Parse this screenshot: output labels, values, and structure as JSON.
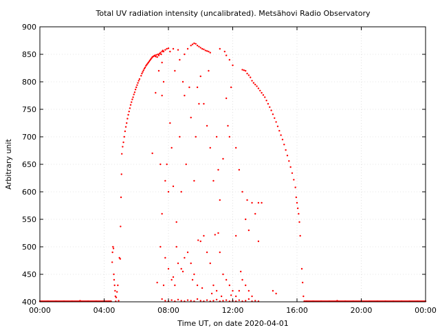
{
  "chart_data": {
    "type": "scatter",
    "title": "Total UV radiation intensity (uncalibrated). Metsähovi Radio Observatory",
    "xlabel": "Time UT, on date 2020-04-01",
    "ylabel": "Arbitrary unit",
    "xlim": [
      0,
      24
    ],
    "ylim": [
      400,
      900
    ],
    "x_ticks": [
      {
        "value": 0,
        "label": "00:00"
      },
      {
        "value": 4,
        "label": "04:00"
      },
      {
        "value": 8,
        "label": "08:00"
      },
      {
        "value": 12,
        "label": "12:00"
      },
      {
        "value": 16,
        "label": "16:00"
      },
      {
        "value": 20,
        "label": "20:00"
      },
      {
        "value": 24,
        "label": "00:00"
      }
    ],
    "y_ticks": [
      400,
      450,
      500,
      550,
      600,
      650,
      700,
      750,
      800,
      850,
      900
    ],
    "grid": true,
    "marker_color": "#ff0000",
    "series": [
      {
        "values_description_free": true,
        "points": [
          [
            0.0,
            401
          ],
          [
            0.5,
            401
          ],
          [
            1.0,
            401
          ],
          [
            1.5,
            401
          ],
          [
            2.0,
            401
          ],
          [
            2.5,
            402
          ],
          [
            3.0,
            401
          ],
          [
            3.5,
            401
          ],
          [
            4.0,
            401
          ],
          [
            4.3,
            401
          ],
          [
            4.4,
            401
          ],
          [
            4.5,
            472
          ],
          [
            4.52,
            490
          ],
          [
            4.55,
            500
          ],
          [
            4.58,
            497
          ],
          [
            4.6,
            450
          ],
          [
            4.62,
            440
          ],
          [
            4.65,
            430
          ],
          [
            4.68,
            420
          ],
          [
            4.7,
            410
          ],
          [
            4.72,
            401
          ],
          [
            4.75,
            408
          ],
          [
            4.8,
            418
          ],
          [
            4.85,
            430
          ],
          [
            4.9,
            402
          ],
          [
            4.95,
            480
          ],
          [
            5.0,
            478
          ],
          [
            5.02,
            537
          ],
          [
            5.05,
            590
          ],
          [
            5.08,
            632
          ],
          [
            5.1,
            669
          ],
          [
            5.15,
            682
          ],
          [
            5.2,
            690
          ],
          [
            5.25,
            700
          ],
          [
            5.3,
            710
          ],
          [
            5.35,
            718
          ],
          [
            5.4,
            725
          ],
          [
            5.45,
            733
          ],
          [
            5.5,
            740
          ],
          [
            5.55,
            746
          ],
          [
            5.6,
            752
          ],
          [
            5.65,
            758
          ],
          [
            5.7,
            763
          ],
          [
            5.75,
            768
          ],
          [
            5.8,
            772
          ],
          [
            5.85,
            777
          ],
          [
            5.9,
            781
          ],
          [
            5.95,
            786
          ],
          [
            6.0,
            790
          ],
          [
            6.05,
            794
          ],
          [
            6.1,
            798
          ],
          [
            6.15,
            802
          ],
          [
            6.2,
            805
          ],
          [
            6.3,
            811
          ],
          [
            6.35,
            815
          ],
          [
            6.4,
            818
          ],
          [
            6.45,
            821
          ],
          [
            6.5,
            824
          ],
          [
            6.55,
            826
          ],
          [
            6.6,
            829
          ],
          [
            6.65,
            831
          ],
          [
            6.7,
            833
          ],
          [
            6.75,
            835
          ],
          [
            6.8,
            837
          ],
          [
            6.85,
            839
          ],
          [
            6.9,
            841
          ],
          [
            6.95,
            843
          ],
          [
            7.0,
            845
          ],
          [
            7.05,
            846
          ],
          [
            7.1,
            847
          ],
          [
            7.15,
            848
          ],
          [
            7.2,
            846
          ],
          [
            7.25,
            849
          ],
          [
            7.3,
            845
          ],
          [
            7.35,
            850
          ],
          [
            7.4,
            848
          ],
          [
            7.45,
            851
          ],
          [
            7.5,
            853
          ],
          [
            7.55,
            850
          ],
          [
            7.6,
            855
          ],
          [
            7.65,
            857
          ],
          [
            7.7,
            855
          ],
          [
            7.8,
            858
          ],
          [
            7.9,
            860
          ],
          [
            8.0,
            861
          ],
          [
            8.1,
            855
          ],
          [
            8.3,
            860
          ],
          [
            8.6,
            858
          ],
          [
            8.7,
            840
          ],
          [
            9.0,
            850
          ],
          [
            9.2,
            860
          ],
          [
            9.4,
            866
          ],
          [
            9.5,
            868
          ],
          [
            9.6,
            870
          ],
          [
            9.7,
            869
          ],
          [
            9.8,
            866
          ],
          [
            9.9,
            864
          ],
          [
            10.0,
            862
          ],
          [
            10.1,
            860
          ],
          [
            10.2,
            859
          ],
          [
            10.3,
            857
          ],
          [
            10.4,
            856
          ],
          [
            10.5,
            855
          ],
          [
            10.6,
            853
          ],
          [
            11.2,
            860
          ],
          [
            11.5,
            855
          ],
          [
            11.6,
            848
          ],
          [
            11.8,
            840
          ],
          [
            12.0,
            830
          ],
          [
            12.6,
            822
          ],
          [
            12.7,
            821
          ],
          [
            12.8,
            820
          ],
          [
            12.9,
            815
          ],
          [
            13.0,
            812
          ],
          [
            13.1,
            808
          ],
          [
            13.2,
            802
          ],
          [
            13.3,
            798
          ],
          [
            13.4,
            795
          ],
          [
            13.5,
            792
          ],
          [
            13.6,
            788
          ],
          [
            13.7,
            784
          ],
          [
            13.8,
            780
          ],
          [
            13.9,
            776
          ],
          [
            14.0,
            772
          ],
          [
            14.1,
            766
          ],
          [
            14.2,
            760
          ],
          [
            14.3,
            754
          ],
          [
            14.4,
            748
          ],
          [
            14.5,
            741
          ],
          [
            14.6,
            734
          ],
          [
            14.7,
            727
          ],
          [
            14.8,
            719
          ],
          [
            14.9,
            711
          ],
          [
            15.0,
            703
          ],
          [
            15.1,
            695
          ],
          [
            15.2,
            686
          ],
          [
            15.3,
            676
          ],
          [
            15.4,
            666
          ],
          [
            15.5,
            656
          ],
          [
            15.6,
            645
          ],
          [
            15.7,
            634
          ],
          [
            15.8,
            622
          ],
          [
            15.9,
            608
          ],
          [
            15.95,
            590
          ],
          [
            16.0,
            580
          ],
          [
            16.05,
            570
          ],
          [
            16.1,
            560
          ],
          [
            16.15,
            545
          ],
          [
            16.2,
            520
          ],
          [
            16.3,
            460
          ],
          [
            16.35,
            435
          ],
          [
            16.4,
            410
          ],
          [
            16.45,
            401
          ],
          [
            16.6,
            401
          ],
          [
            17.0,
            401
          ],
          [
            17.5,
            401
          ],
          [
            18.0,
            401
          ],
          [
            18.5,
            402
          ],
          [
            19.0,
            401
          ],
          [
            19.5,
            401
          ],
          [
            20.0,
            401
          ],
          [
            20.5,
            401
          ],
          [
            21.0,
            401
          ],
          [
            21.5,
            401
          ],
          [
            22.0,
            401
          ],
          [
            22.5,
            401
          ],
          [
            23.0,
            401
          ],
          [
            23.5,
            401
          ],
          [
            24.0,
            401
          ],
          [
            7.0,
            670
          ],
          [
            7.5,
            650
          ],
          [
            7.6,
            775
          ],
          [
            7.7,
            800
          ],
          [
            7.4,
            820
          ],
          [
            7.8,
            620
          ],
          [
            8.0,
            600
          ],
          [
            8.1,
            725
          ],
          [
            8.2,
            680
          ],
          [
            8.3,
            610
          ],
          [
            8.5,
            545
          ],
          [
            8.7,
            700
          ],
          [
            8.8,
            600
          ],
          [
            9.0,
            775
          ],
          [
            9.1,
            650
          ],
          [
            9.3,
            790
          ],
          [
            9.4,
            735
          ],
          [
            9.6,
            620
          ],
          [
            9.7,
            700
          ],
          [
            9.9,
            760
          ],
          [
            10.0,
            810
          ],
          [
            10.2,
            760
          ],
          [
            10.4,
            720
          ],
          [
            10.6,
            680
          ],
          [
            10.8,
            620
          ],
          [
            11.0,
            700
          ],
          [
            11.1,
            640
          ],
          [
            11.2,
            585
          ],
          [
            11.4,
            660
          ],
          [
            11.6,
            770
          ],
          [
            11.7,
            720
          ],
          [
            11.8,
            700
          ],
          [
            12.2,
            680
          ],
          [
            12.4,
            640
          ],
          [
            12.6,
            600
          ],
          [
            12.8,
            550
          ],
          [
            13.0,
            530
          ],
          [
            13.2,
            580
          ],
          [
            13.4,
            560
          ],
          [
            13.6,
            510
          ],
          [
            13.8,
            580
          ],
          [
            14.5,
            420
          ],
          [
            14.7,
            415
          ],
          [
            7.5,
            500
          ],
          [
            7.8,
            480
          ],
          [
            8.0,
            460
          ],
          [
            8.2,
            440
          ],
          [
            8.4,
            430
          ],
          [
            8.6,
            470
          ],
          [
            8.8,
            460
          ],
          [
            9.0,
            480
          ],
          [
            9.2,
            490
          ],
          [
            9.4,
            470
          ],
          [
            9.6,
            450
          ],
          [
            9.8,
            430
          ],
          [
            10.0,
            510
          ],
          [
            10.2,
            520
          ],
          [
            10.4,
            490
          ],
          [
            10.6,
            470
          ],
          [
            10.8,
            430
          ],
          [
            11.0,
            420
          ],
          [
            11.2,
            490
          ],
          [
            11.4,
            450
          ],
          [
            11.6,
            440
          ],
          [
            11.8,
            430
          ],
          [
            12.0,
            420
          ],
          [
            12.2,
            410
          ],
          [
            12.4,
            420
          ],
          [
            12.6,
            440
          ],
          [
            12.8,
            430
          ],
          [
            13.0,
            420
          ],
          [
            13.2,
            410
          ],
          [
            7.6,
            405
          ],
          [
            7.8,
            402
          ],
          [
            8.0,
            401
          ],
          [
            8.2,
            403
          ],
          [
            8.4,
            401
          ],
          [
            8.6,
            404
          ],
          [
            8.8,
            402
          ],
          [
            9.0,
            401
          ],
          [
            9.2,
            403
          ],
          [
            9.4,
            402
          ],
          [
            9.6,
            401
          ],
          [
            9.8,
            405
          ],
          [
            10.0,
            402
          ],
          [
            10.2,
            401
          ],
          [
            10.4,
            403
          ],
          [
            10.6,
            401
          ],
          [
            10.8,
            402
          ],
          [
            11.0,
            404
          ],
          [
            11.2,
            401
          ],
          [
            11.4,
            402
          ],
          [
            11.6,
            403
          ],
          [
            11.8,
            401
          ],
          [
            12.0,
            402
          ],
          [
            12.2,
            401
          ],
          [
            12.4,
            403
          ],
          [
            12.6,
            401
          ],
          [
            12.8,
            402
          ],
          [
            13.0,
            405
          ],
          [
            13.2,
            401
          ],
          [
            13.4,
            402
          ],
          [
            13.6,
            401
          ],
          [
            7.3,
            435
          ],
          [
            7.7,
            430
          ],
          [
            8.3,
            445
          ],
          [
            8.9,
            455
          ],
          [
            9.5,
            440
          ],
          [
            10.1,
            425
          ],
          [
            10.7,
            415
          ],
          [
            11.3,
            410
          ],
          [
            11.9,
            412
          ],
          [
            12.5,
            455
          ],
          [
            7.2,
            780
          ],
          [
            7.6,
            835
          ],
          [
            8.4,
            820
          ],
          [
            8.9,
            800
          ],
          [
            9.8,
            790
          ],
          [
            10.5,
            820
          ],
          [
            11.9,
            790
          ],
          [
            12.9,
            585
          ],
          [
            13.6,
            580
          ],
          [
            10.9,
            522
          ],
          [
            11.1,
            525
          ],
          [
            9.85,
            512
          ],
          [
            8.5,
            500
          ],
          [
            12.2,
            520
          ],
          [
            7.6,
            560
          ],
          [
            7.9,
            650
          ]
        ]
      }
    ]
  }
}
